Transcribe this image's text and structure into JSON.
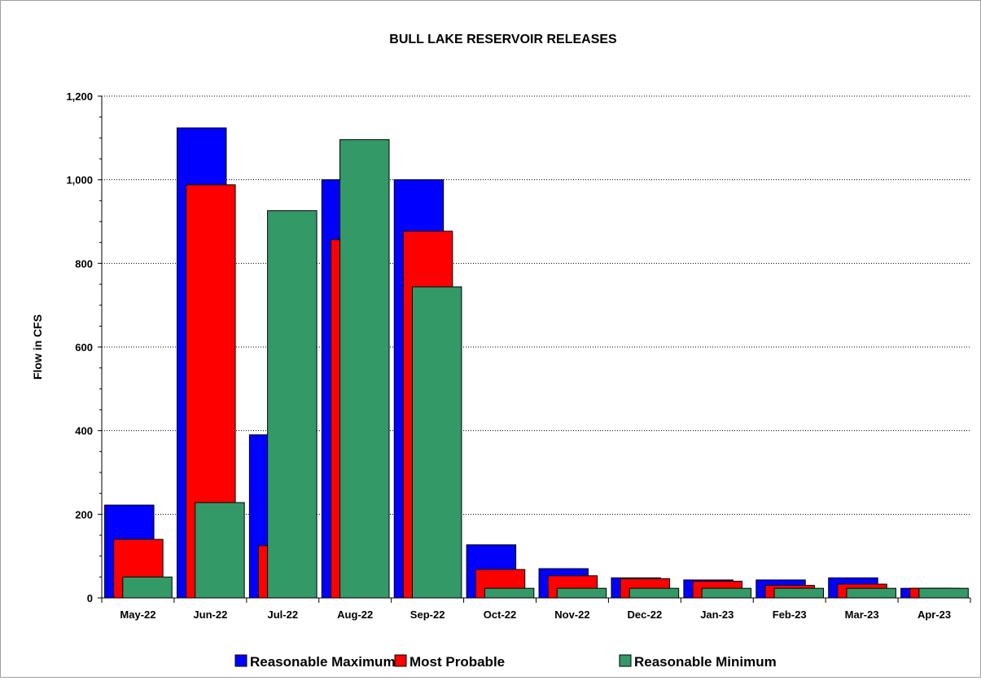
{
  "chart_data": {
    "type": "bar",
    "title": "BULL LAKE RESERVOIR RELEASES",
    "xlabel": "",
    "ylabel": "Flow in CFS",
    "ylim": [
      0,
      1200
    ],
    "yticks": [
      0,
      200,
      400,
      600,
      800,
      1000,
      1200
    ],
    "ytick_labels": [
      "0",
      "200",
      "400",
      "600",
      "800",
      "1,000",
      "1,200"
    ],
    "grid": true,
    "legend_position": "bottom",
    "categories": [
      "May-22",
      "Jun-22",
      "Jul-22",
      "Aug-22",
      "Sep-22",
      "Oct-22",
      "Nov-22",
      "Dec-22",
      "Jan-23",
      "Feb-23",
      "Mar-23",
      "Apr-23"
    ],
    "series": [
      {
        "name": "Reasonable Maximum",
        "color": "#0000ff",
        "values": [
          222,
          1124,
          390,
          1000,
          1000,
          127,
          70,
          48,
          43,
          43,
          48,
          23
        ]
      },
      {
        "name": "Most Probable",
        "color": "#ff0000",
        "values": [
          140,
          988,
          125,
          857,
          877,
          68,
          53,
          46,
          40,
          30,
          33,
          23
        ]
      },
      {
        "name": "Reasonable Minimum",
        "color": "#339966",
        "values": [
          50,
          228,
          926,
          1096,
          744,
          23,
          23,
          23,
          23,
          23,
          23,
          23
        ]
      }
    ]
  }
}
